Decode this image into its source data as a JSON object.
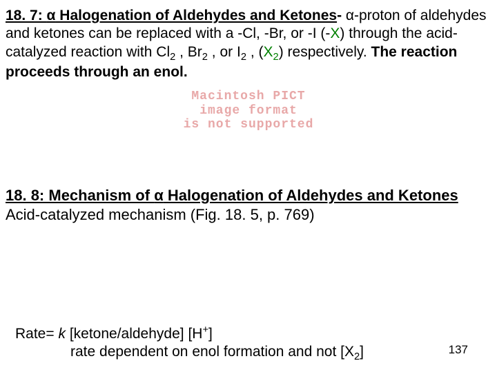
{
  "section187": {
    "label": "18. 7: ",
    "alpha1": "α",
    "title_mid": " Halogenation of Aldehydes and Ketones",
    "dash": "- ",
    "alpha2": "α",
    "after_alpha2": "-proton of aldehydes and ketones can be replaced with a -Cl, -Br, or -I (-",
    "x1": "X",
    "after_x1": ") through the acid-catalyzed reaction with Cl",
    "sub2a": "2",
    "comma1": " , Br",
    "sub2b": "2",
    "comma2": " , or I",
    "sub2c": "2",
    "comma3": " , (",
    "x2": "X",
    "sub2d": "2",
    "after_x2": ") respectively. ",
    "enol_sentence": "The reaction proceeds through an enol."
  },
  "pict": {
    "l1": "Macintosh PICT",
    "l2": "image format",
    "l3": "is not supported"
  },
  "section188": {
    "label": "18. 8: Mechanism of ",
    "alpha": "α",
    "title_rest": " Halogenation of Aldehydes and Ketones",
    "body": "Acid-catalyzed mechanism (Fig. 18. 5, p. 769)"
  },
  "rate": {
    "prefix": "Rate= ",
    "k": "k ",
    "bracket1": "[ketone/aldehyde] [H",
    "sup": "+",
    "bracket1_end": "]",
    "line2_a": "rate dependent on enol formation and not [X",
    "line2_sub": "2",
    "line2_end": "]"
  },
  "pagenum": "137",
  "colors": {
    "green": "#008000",
    "pict_pink": "#e8a8a8",
    "text": "#000000",
    "bg": "#ffffff"
  },
  "fonts": {
    "body_pt": 21,
    "heading_pt": 22,
    "pict_pt": 18,
    "pagenum_pt": 17
  }
}
